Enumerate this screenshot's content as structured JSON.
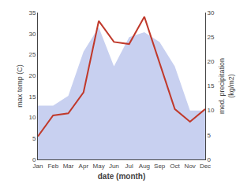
{
  "chart_data": {
    "type": "line",
    "categories": [
      "Jan",
      "Feb",
      "Mar",
      "Apr",
      "May",
      "Jun",
      "Jul",
      "Aug",
      "Sep",
      "Oct",
      "Nov",
      "Dec"
    ],
    "series": [
      {
        "type": "area",
        "axis": "y2",
        "color": "#c8d0f0",
        "values": [
          11,
          11,
          13,
          22,
          27,
          19,
          25,
          26,
          24,
          19,
          10,
          10
        ]
      },
      {
        "type": "line",
        "color": "#c0392b",
        "values": [
          5.5,
          10.5,
          11.0,
          16.0,
          33.0,
          28.0,
          27.5,
          34.0,
          23.0,
          12.0,
          9.0,
          12.0
        ]
      }
    ],
    "xlabel": "date (month)",
    "ylabel": "max temp (C)",
    "y2label": "med. precipitation\n(kg/m2)",
    "ylim": [
      0,
      35
    ],
    "yticks": [
      0,
      5,
      10,
      15,
      20,
      25,
      30,
      35
    ],
    "y2lim": [
      0,
      30
    ],
    "y2ticks": [
      0,
      5,
      10,
      15,
      20,
      25,
      30
    ],
    "grid": false
  }
}
